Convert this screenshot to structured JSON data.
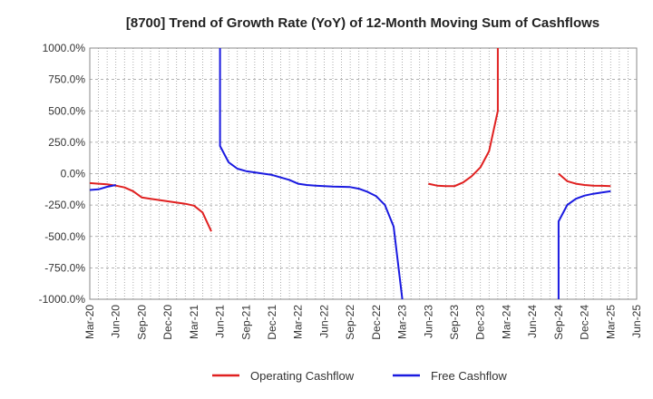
{
  "chart_data": {
    "type": "line",
    "title": "[8700]  Trend of Growth Rate (YoY) of 12-Month Moving Sum of Cashflows",
    "xlabel": "",
    "ylabel": "",
    "ylim": [
      -1000,
      1000
    ],
    "y_ticks": [
      "1000.0%",
      "750.0%",
      "500.0%",
      "250.0%",
      "0.0%",
      "-250.0%",
      "-500.0%",
      "-750.0%",
      "-1000.0%"
    ],
    "x_ticks": [
      "Mar-20",
      "Jun-20",
      "Sep-20",
      "Dec-20",
      "Mar-21",
      "Jun-21",
      "Sep-21",
      "Dec-21",
      "Mar-22",
      "Jun-22",
      "Sep-22",
      "Dec-22",
      "Mar-23",
      "Jun-23",
      "Sep-23",
      "Dec-23",
      "Mar-24",
      "Jun-24",
      "Sep-24",
      "Dec-24",
      "Mar-25",
      "Jun-25"
    ],
    "grid": true,
    "legend_position": "bottom",
    "series": [
      {
        "name": "Operating Cashflow",
        "color": "#e02020",
        "segments": [
          [
            [
              "Mar-20",
              -75
            ],
            [
              "Apr-20",
              -80
            ],
            [
              "May-20",
              -85
            ],
            [
              "Jun-20",
              -95
            ],
            [
              "Jul-20",
              -110
            ],
            [
              "Aug-20",
              -140
            ],
            [
              "Sep-20",
              -190
            ],
            [
              "Oct-20",
              -200
            ],
            [
              "Nov-20",
              -210
            ],
            [
              "Dec-20",
              -220
            ],
            [
              "Jan-21",
              -230
            ],
            [
              "Feb-21",
              -240
            ],
            [
              "Mar-21",
              -255
            ],
            [
              "Apr-21",
              -310
            ],
            [
              "May-21",
              -460
            ]
          ],
          [
            [
              "Jun-23",
              -80
            ],
            [
              "Jul-23",
              -95
            ],
            [
              "Aug-23",
              -100
            ],
            [
              "Sep-23",
              -100
            ],
            [
              "Oct-23",
              -70
            ],
            [
              "Nov-23",
              -20
            ],
            [
              "Dec-23",
              50
            ],
            [
              "Jan-24",
              180
            ],
            [
              "Feb-24",
              500
            ],
            [
              "Feb-24",
              1000
            ]
          ],
          [
            [
              "Sep-24",
              0
            ],
            [
              "Oct-24",
              -60
            ],
            [
              "Nov-24",
              -80
            ],
            [
              "Dec-24",
              -90
            ],
            [
              "Jan-25",
              -95
            ],
            [
              "Feb-25",
              -97
            ],
            [
              "Mar-25",
              -100
            ]
          ]
        ]
      },
      {
        "name": "Free Cashflow",
        "color": "#1a1ae0",
        "segments": [
          [
            [
              "Mar-20",
              -130
            ],
            [
              "Apr-20",
              -125
            ],
            [
              "May-20",
              -105
            ],
            [
              "Jun-20",
              -90
            ]
          ],
          [
            [
              "Jun-21",
              1000
            ],
            [
              "Jun-21",
              220
            ],
            [
              "Jul-21",
              90
            ],
            [
              "Aug-21",
              40
            ],
            [
              "Sep-21",
              20
            ],
            [
              "Oct-21",
              10
            ],
            [
              "Nov-21",
              0
            ],
            [
              "Dec-21",
              -10
            ],
            [
              "Jan-22",
              -30
            ],
            [
              "Feb-22",
              -50
            ],
            [
              "Mar-22",
              -80
            ],
            [
              "Apr-22",
              -90
            ],
            [
              "May-22",
              -95
            ],
            [
              "Jun-22",
              -100
            ],
            [
              "Jul-22",
              -103
            ],
            [
              "Aug-22",
              -105
            ],
            [
              "Sep-22",
              -107
            ],
            [
              "Oct-22",
              -120
            ],
            [
              "Nov-22",
              -145
            ],
            [
              "Dec-22",
              -180
            ],
            [
              "Jan-23",
              -250
            ],
            [
              "Feb-23",
              -420
            ],
            [
              "Mar-23",
              -1000
            ]
          ],
          [
            [
              "Sep-24",
              -1000
            ],
            [
              "Sep-24",
              -380
            ],
            [
              "Oct-24",
              -250
            ],
            [
              "Nov-24",
              -200
            ],
            [
              "Dec-24",
              -175
            ],
            [
              "Jan-25",
              -160
            ],
            [
              "Feb-25",
              -150
            ],
            [
              "Mar-25",
              -140
            ]
          ]
        ]
      }
    ]
  }
}
